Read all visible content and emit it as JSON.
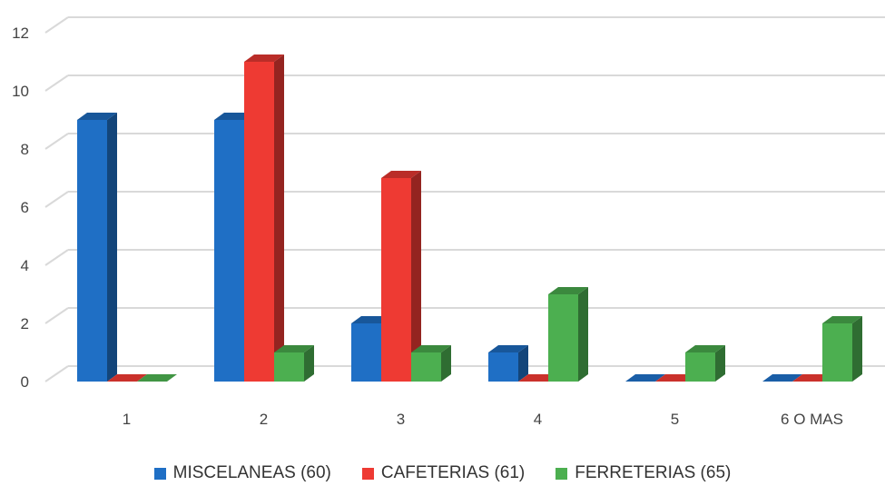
{
  "chart_data": {
    "type": "bar",
    "categories": [
      "1",
      "2",
      "3",
      "4",
      "5",
      "6 O MAS"
    ],
    "series": [
      {
        "name": "MISCELANEAS (60)",
        "values": [
          9,
          9,
          2,
          1,
          0,
          0
        ],
        "color": "#1f6fc5"
      },
      {
        "name": "CAFETERIAS (61)",
        "values": [
          0,
          11,
          7,
          0,
          0,
          0
        ],
        "color": "#ee3a33"
      },
      {
        "name": "FERRETERIAS (65)",
        "values": [
          0,
          1,
          1,
          3,
          1,
          2
        ],
        "color": "#4caf50"
      }
    ],
    "yticks": [
      "0",
      "2",
      "4",
      "6",
      "8",
      "10",
      "12"
    ],
    "ylim": [
      0,
      12
    ],
    "grid": true,
    "legend_position": "bottom",
    "style": "3d-clustered-column"
  }
}
